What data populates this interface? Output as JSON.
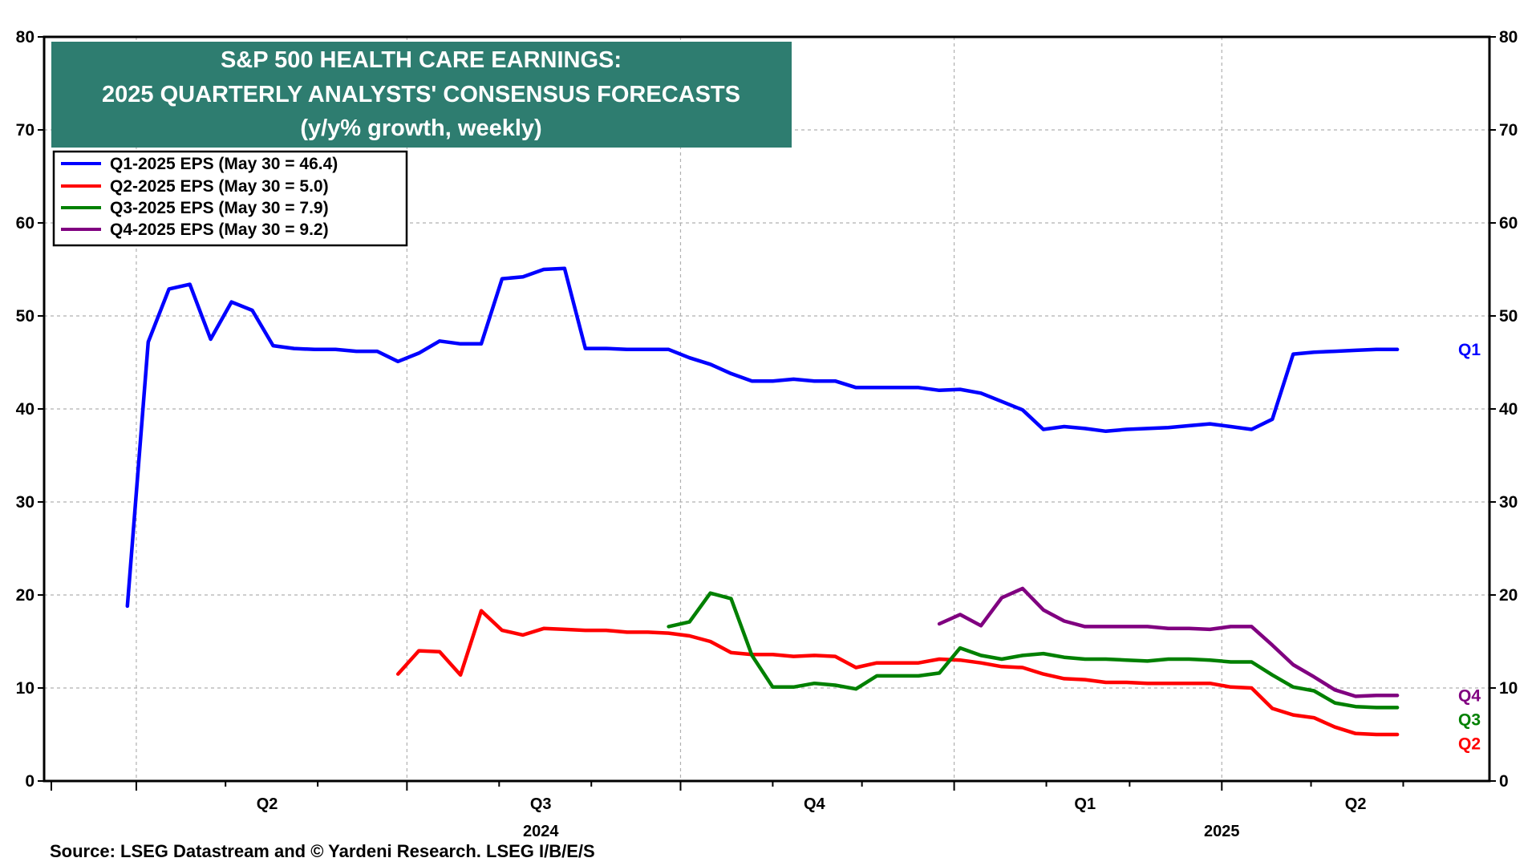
{
  "chart_data": {
    "type": "line",
    "title": [
      "S&P 500 HEALTH CARE EARNINGS:",
      "2025 QUARTERLY ANALYSTS' CONSENSUS FORECASTS",
      "(y/y% growth, weekly)"
    ],
    "ylim": [
      0,
      80
    ],
    "yticks": [
      0,
      10,
      20,
      30,
      40,
      50,
      60,
      70,
      80
    ],
    "y_tick_labels": [
      "0",
      "10",
      "20",
      "30",
      "40",
      "50",
      "60",
      "70",
      "80"
    ],
    "grid": true,
    "legend_position": "top-left",
    "x_unit": "week ending (date)",
    "xlim": [
      "2024-03-01",
      "2025-06-30"
    ],
    "x_quarter_labels": [
      {
        "label": "Q2",
        "date": "2024-05-15"
      },
      {
        "label": "Q3",
        "date": "2024-08-15"
      },
      {
        "label": "Q4",
        "date": "2024-11-15"
      },
      {
        "label": "Q1",
        "date": "2025-02-14"
      },
      {
        "label": "Q2",
        "date": "2025-05-16"
      }
    ],
    "x_year_labels": [
      {
        "label": "2024",
        "date": "2024-08-15"
      },
      {
        "label": "2025",
        "date": "2025-04-01"
      }
    ],
    "series": [
      {
        "name": "Q1-2025 EPS (May 30 = 46.4)",
        "end_label": "Q1",
        "color": "#0000ff",
        "points": [
          [
            "2024-03-29",
            18.8
          ],
          [
            "2024-04-05",
            47.2
          ],
          [
            "2024-04-12",
            52.9
          ],
          [
            "2024-04-19",
            53.4
          ],
          [
            "2024-04-26",
            47.5
          ],
          [
            "2024-05-03",
            51.5
          ],
          [
            "2024-05-10",
            50.6
          ],
          [
            "2024-05-17",
            46.8
          ],
          [
            "2024-05-24",
            46.5
          ],
          [
            "2024-05-31",
            46.4
          ],
          [
            "2024-06-07",
            46.4
          ],
          [
            "2024-06-14",
            46.2
          ],
          [
            "2024-06-21",
            46.2
          ],
          [
            "2024-06-28",
            45.1
          ],
          [
            "2024-07-05",
            46.0
          ],
          [
            "2024-07-12",
            47.3
          ],
          [
            "2024-07-19",
            47.0
          ],
          [
            "2024-07-26",
            47.0
          ],
          [
            "2024-08-02",
            54.0
          ],
          [
            "2024-08-09",
            54.2
          ],
          [
            "2024-08-16",
            55.0
          ],
          [
            "2024-08-23",
            55.1
          ],
          [
            "2024-08-30",
            46.5
          ],
          [
            "2024-09-06",
            46.5
          ],
          [
            "2024-09-13",
            46.4
          ],
          [
            "2024-09-20",
            46.4
          ],
          [
            "2024-09-27",
            46.4
          ],
          [
            "2024-10-04",
            45.5
          ],
          [
            "2024-10-11",
            44.8
          ],
          [
            "2024-10-18",
            43.8
          ],
          [
            "2024-10-25",
            43.0
          ],
          [
            "2024-11-01",
            43.0
          ],
          [
            "2024-11-08",
            43.2
          ],
          [
            "2024-11-15",
            43.0
          ],
          [
            "2024-11-22",
            43.0
          ],
          [
            "2024-11-29",
            42.3
          ],
          [
            "2024-12-06",
            42.3
          ],
          [
            "2024-12-13",
            42.3
          ],
          [
            "2024-12-20",
            42.3
          ],
          [
            "2024-12-27",
            42.0
          ],
          [
            "2025-01-03",
            42.1
          ],
          [
            "2025-01-10",
            41.7
          ],
          [
            "2025-01-17",
            40.8
          ],
          [
            "2025-01-24",
            39.9
          ],
          [
            "2025-01-31",
            37.8
          ],
          [
            "2025-02-07",
            38.1
          ],
          [
            "2025-02-14",
            37.9
          ],
          [
            "2025-02-21",
            37.6
          ],
          [
            "2025-02-28",
            37.8
          ],
          [
            "2025-03-07",
            37.9
          ],
          [
            "2025-03-14",
            38.0
          ],
          [
            "2025-03-21",
            38.2
          ],
          [
            "2025-03-28",
            38.4
          ],
          [
            "2025-04-04",
            38.1
          ],
          [
            "2025-04-11",
            37.8
          ],
          [
            "2025-04-18",
            38.9
          ],
          [
            "2025-04-25",
            45.9
          ],
          [
            "2025-05-02",
            46.1
          ],
          [
            "2025-05-09",
            46.2
          ],
          [
            "2025-05-16",
            46.3
          ],
          [
            "2025-05-23",
            46.4
          ],
          [
            "2025-05-30",
            46.4
          ]
        ]
      },
      {
        "name": "Q2-2025 EPS (May 30 = 5.0)",
        "end_label": "Q2",
        "color": "#ff0000",
        "points": [
          [
            "2024-06-28",
            11.5
          ],
          [
            "2024-07-05",
            14.0
          ],
          [
            "2024-07-12",
            13.9
          ],
          [
            "2024-07-19",
            11.4
          ],
          [
            "2024-07-26",
            18.3
          ],
          [
            "2024-08-02",
            16.2
          ],
          [
            "2024-08-09",
            15.7
          ],
          [
            "2024-08-16",
            16.4
          ],
          [
            "2024-08-23",
            16.3
          ],
          [
            "2024-08-30",
            16.2
          ],
          [
            "2024-09-06",
            16.2
          ],
          [
            "2024-09-13",
            16.0
          ],
          [
            "2024-09-20",
            16.0
          ],
          [
            "2024-09-27",
            15.9
          ],
          [
            "2024-10-04",
            15.6
          ],
          [
            "2024-10-11",
            15.0
          ],
          [
            "2024-10-18",
            13.8
          ],
          [
            "2024-10-25",
            13.6
          ],
          [
            "2024-11-01",
            13.6
          ],
          [
            "2024-11-08",
            13.4
          ],
          [
            "2024-11-15",
            13.5
          ],
          [
            "2024-11-22",
            13.4
          ],
          [
            "2024-11-29",
            12.2
          ],
          [
            "2024-12-06",
            12.7
          ],
          [
            "2024-12-13",
            12.7
          ],
          [
            "2024-12-20",
            12.7
          ],
          [
            "2024-12-27",
            13.1
          ],
          [
            "2025-01-03",
            13.0
          ],
          [
            "2025-01-10",
            12.7
          ],
          [
            "2025-01-17",
            12.3
          ],
          [
            "2025-01-24",
            12.2
          ],
          [
            "2025-01-31",
            11.5
          ],
          [
            "2025-02-07",
            11.0
          ],
          [
            "2025-02-14",
            10.9
          ],
          [
            "2025-02-21",
            10.6
          ],
          [
            "2025-02-28",
            10.6
          ],
          [
            "2025-03-07",
            10.5
          ],
          [
            "2025-03-14",
            10.5
          ],
          [
            "2025-03-21",
            10.5
          ],
          [
            "2025-03-28",
            10.5
          ],
          [
            "2025-04-04",
            10.1
          ],
          [
            "2025-04-11",
            10.0
          ],
          [
            "2025-04-18",
            7.8
          ],
          [
            "2025-04-25",
            7.1
          ],
          [
            "2025-05-02",
            6.8
          ],
          [
            "2025-05-09",
            5.8
          ],
          [
            "2025-05-16",
            5.1
          ],
          [
            "2025-05-23",
            5.0
          ],
          [
            "2025-05-30",
            5.0
          ]
        ]
      },
      {
        "name": "Q3-2025 EPS (May 30 = 7.9)",
        "end_label": "Q3",
        "color": "#008000",
        "points": [
          [
            "2024-09-27",
            16.6
          ],
          [
            "2024-10-04",
            17.1
          ],
          [
            "2024-10-11",
            20.2
          ],
          [
            "2024-10-18",
            19.6
          ],
          [
            "2024-10-25",
            13.5
          ],
          [
            "2024-11-01",
            10.1
          ],
          [
            "2024-11-08",
            10.1
          ],
          [
            "2024-11-15",
            10.5
          ],
          [
            "2024-11-22",
            10.3
          ],
          [
            "2024-11-29",
            9.9
          ],
          [
            "2024-12-06",
            11.3
          ],
          [
            "2024-12-13",
            11.3
          ],
          [
            "2024-12-20",
            11.3
          ],
          [
            "2024-12-27",
            11.6
          ],
          [
            "2025-01-03",
            14.3
          ],
          [
            "2025-01-10",
            13.5
          ],
          [
            "2025-01-17",
            13.1
          ],
          [
            "2025-01-24",
            13.5
          ],
          [
            "2025-01-31",
            13.7
          ],
          [
            "2025-02-07",
            13.3
          ],
          [
            "2025-02-14",
            13.1
          ],
          [
            "2025-02-21",
            13.1
          ],
          [
            "2025-02-28",
            13.0
          ],
          [
            "2025-03-07",
            12.9
          ],
          [
            "2025-03-14",
            13.1
          ],
          [
            "2025-03-21",
            13.1
          ],
          [
            "2025-03-28",
            13.0
          ],
          [
            "2025-04-04",
            12.8
          ],
          [
            "2025-04-11",
            12.8
          ],
          [
            "2025-04-18",
            11.4
          ],
          [
            "2025-04-25",
            10.1
          ],
          [
            "2025-05-02",
            9.7
          ],
          [
            "2025-05-09",
            8.4
          ],
          [
            "2025-05-16",
            8.0
          ],
          [
            "2025-05-23",
            7.9
          ],
          [
            "2025-05-30",
            7.9
          ]
        ]
      },
      {
        "name": "Q4-2025 EPS (May 30 = 9.2)",
        "end_label": "Q4",
        "color": "#800080",
        "points": [
          [
            "2024-12-27",
            16.9
          ],
          [
            "2025-01-03",
            17.9
          ],
          [
            "2025-01-10",
            16.7
          ],
          [
            "2025-01-17",
            19.7
          ],
          [
            "2025-01-24",
            20.7
          ],
          [
            "2025-01-31",
            18.4
          ],
          [
            "2025-02-07",
            17.2
          ],
          [
            "2025-02-14",
            16.6
          ],
          [
            "2025-02-21",
            16.6
          ],
          [
            "2025-02-28",
            16.6
          ],
          [
            "2025-03-07",
            16.6
          ],
          [
            "2025-03-14",
            16.4
          ],
          [
            "2025-03-21",
            16.4
          ],
          [
            "2025-03-28",
            16.3
          ],
          [
            "2025-04-04",
            16.6
          ],
          [
            "2025-04-11",
            16.6
          ],
          [
            "2025-04-18",
            14.6
          ],
          [
            "2025-04-25",
            12.5
          ],
          [
            "2025-05-02",
            11.2
          ],
          [
            "2025-05-09",
            9.8
          ],
          [
            "2025-05-16",
            9.1
          ],
          [
            "2025-05-23",
            9.2
          ],
          [
            "2025-05-30",
            9.2
          ]
        ]
      }
    ]
  },
  "source": "Source: LSEG Datastream and © Yardeni Research. LSEG I/B/E/S",
  "colors": {
    "title_bg": "#2e7d70",
    "grid": "#b0b0b0"
  }
}
